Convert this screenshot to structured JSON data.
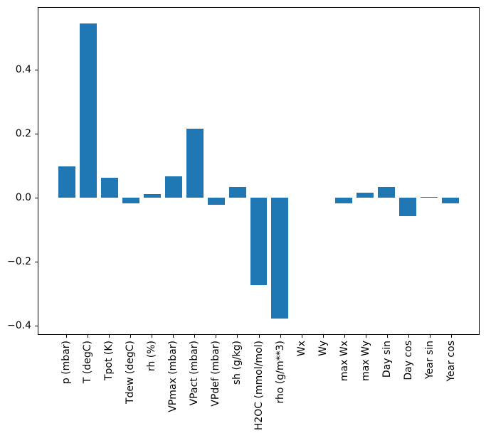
{
  "figure": {
    "background": "#ffffff",
    "spine_color": "#000000",
    "tick_color": "#000000"
  },
  "chart_data": {
    "type": "bar",
    "title": "",
    "xlabel": "",
    "ylabel": "",
    "bar_color": "#1f77b4",
    "grid": false,
    "legend": "none",
    "xticklabel_rotation": 90,
    "ylim": [
      -0.429,
      0.596
    ],
    "yticks": [
      {
        "value": 0.4,
        "label": "0.4"
      },
      {
        "value": 0.2,
        "label": "0.2"
      },
      {
        "value": 0.0,
        "label": "0.0"
      },
      {
        "value": -0.2,
        "label": "−0.2"
      },
      {
        "value": -0.4,
        "label": "−0.4"
      }
    ],
    "categories": [
      "p (mbar)",
      "T (degC)",
      "Tpot (K)",
      "Tdew (degC)",
      "rh (%)",
      "VPmax (mbar)",
      "VPact (mbar)",
      "VPdef (mbar)",
      "sh (g/kg)",
      "H2OC (mmol/mol)",
      "rho (g/m**3)",
      "Wx",
      "Wy",
      "max Wx",
      "max Wy",
      "Day sin",
      "Day cos",
      "Year sin",
      "Year cos"
    ],
    "values": [
      0.099,
      0.547,
      0.063,
      -0.019,
      0.012,
      0.066,
      0.217,
      -0.022,
      0.034,
      -0.275,
      -0.38,
      0.0,
      0.0,
      -0.017,
      0.016,
      0.033,
      -0.058,
      0.003,
      -0.018
    ]
  }
}
